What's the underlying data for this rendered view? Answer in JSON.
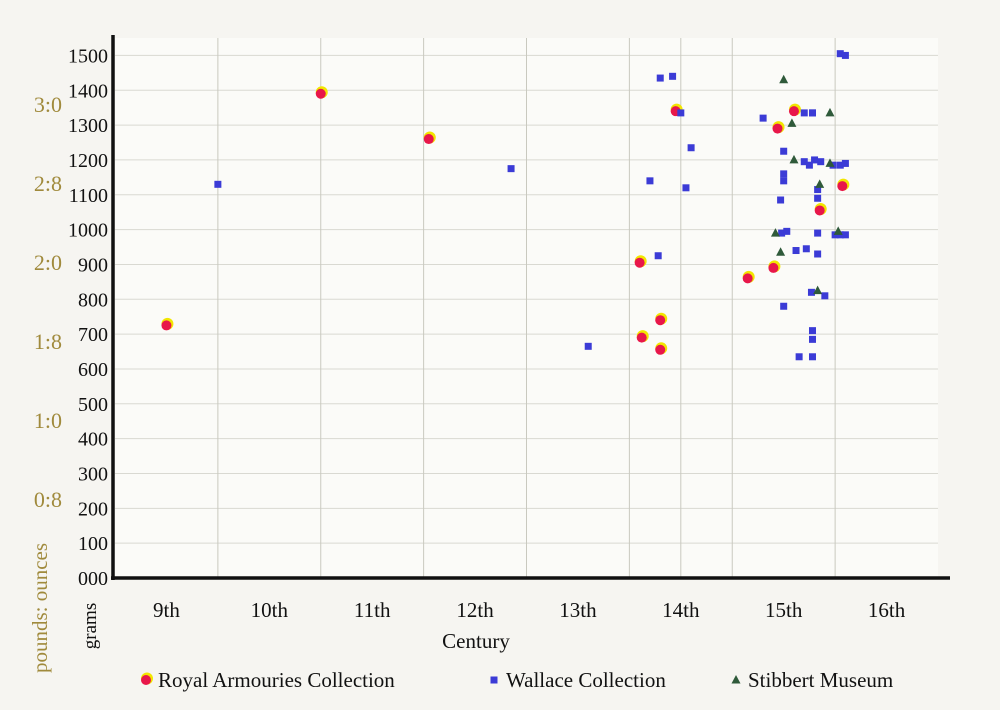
{
  "chart_data": {
    "type": "scatter",
    "title": "",
    "xlabel": "Century",
    "ylabel_grams": "grams",
    "ylabel_imperial": "pounds: ounces",
    "xlim": [
      8.5,
      16.5
    ],
    "ylim": [
      0,
      1550
    ],
    "x_tick_values": [
      9,
      10,
      11,
      12,
      13,
      14,
      15,
      16
    ],
    "x_tick_labels": [
      "9th",
      "10th",
      "11th",
      "12th",
      "13th",
      "14th",
      "15th",
      "16th"
    ],
    "y_tick_values": [
      0,
      100,
      200,
      300,
      400,
      500,
      600,
      700,
      800,
      900,
      1000,
      1100,
      1200,
      1300,
      1400,
      1500
    ],
    "y_tick_labels": [
      "000",
      "100",
      "200",
      "300",
      "400",
      "500",
      "600",
      "700",
      "800",
      "900",
      "1000",
      "1100",
      "1200",
      "1300",
      "1400",
      "1500"
    ],
    "imperial_ticks": [
      {
        "label": "0:8",
        "grams": 227
      },
      {
        "label": "1:0",
        "grams": 454
      },
      {
        "label": "1:8",
        "grams": 680
      },
      {
        "label": "2:0",
        "grams": 907
      },
      {
        "label": "2:8",
        "grams": 1134
      },
      {
        "label": "3:0",
        "grams": 1361
      }
    ],
    "vertical_grid_x": [
      9.5,
      10.5,
      11.5,
      12.5,
      13.5,
      14.0,
      14.5,
      15.5
    ],
    "grid": true,
    "legend_position": "bottom",
    "series": [
      {
        "name": "Royal Armouries Collection",
        "marker": "circle",
        "color": "#e8174a",
        "ring_color": "#f2e600",
        "points": [
          [
            9.0,
            725
          ],
          [
            10.5,
            1390
          ],
          [
            11.55,
            1260
          ],
          [
            13.6,
            905
          ],
          [
            13.62,
            690
          ],
          [
            13.8,
            740
          ],
          [
            13.8,
            655
          ],
          [
            13.95,
            1340
          ],
          [
            14.65,
            860
          ],
          [
            14.9,
            890
          ],
          [
            14.94,
            1290
          ],
          [
            15.1,
            1340
          ],
          [
            15.35,
            1055
          ],
          [
            15.57,
            1125
          ]
        ]
      },
      {
        "name": "Wallace Collection",
        "marker": "square",
        "color": "#3b3bd6",
        "points": [
          [
            9.5,
            1130
          ],
          [
            12.35,
            1175
          ],
          [
            13.1,
            665
          ],
          [
            13.7,
            1140
          ],
          [
            13.78,
            925
          ],
          [
            13.8,
            1435
          ],
          [
            13.92,
            1440
          ],
          [
            14.0,
            1335
          ],
          [
            14.05,
            1120
          ],
          [
            14.1,
            1235
          ],
          [
            14.8,
            1320
          ],
          [
            14.97,
            1085
          ],
          [
            15.0,
            1225
          ],
          [
            15.0,
            1160
          ],
          [
            15.0,
            1140
          ],
          [
            14.98,
            990
          ],
          [
            15.03,
            995
          ],
          [
            15.0,
            780
          ],
          [
            15.12,
            940
          ],
          [
            15.15,
            635
          ],
          [
            15.2,
            1195
          ],
          [
            15.2,
            1335
          ],
          [
            15.28,
            1335
          ],
          [
            15.25,
            1185
          ],
          [
            15.28,
            1335
          ],
          [
            15.22,
            945
          ],
          [
            15.3,
            1200
          ],
          [
            15.33,
            1090
          ],
          [
            15.33,
            1115
          ],
          [
            15.33,
            990
          ],
          [
            15.33,
            930
          ],
          [
            15.28,
            710
          ],
          [
            15.28,
            685
          ],
          [
            15.27,
            820
          ],
          [
            15.28,
            635
          ],
          [
            15.36,
            1195
          ],
          [
            15.4,
            810
          ],
          [
            15.48,
            1185
          ],
          [
            15.5,
            985
          ],
          [
            15.55,
            985
          ],
          [
            15.55,
            1185
          ],
          [
            15.55,
            1505
          ],
          [
            15.6,
            1500
          ],
          [
            15.6,
            985
          ],
          [
            15.6,
            1190
          ]
        ]
      },
      {
        "name": "Stibbert Museum",
        "marker": "triangle",
        "color": "#2f5a3a",
        "points": [
          [
            15.0,
            1430
          ],
          [
            14.92,
            990
          ],
          [
            14.97,
            935
          ],
          [
            15.08,
            1305
          ],
          [
            15.1,
            1200
          ],
          [
            15.35,
            1130
          ],
          [
            15.33,
            825
          ],
          [
            15.45,
            1190
          ],
          [
            15.45,
            1335
          ],
          [
            15.53,
            995
          ]
        ]
      }
    ]
  }
}
